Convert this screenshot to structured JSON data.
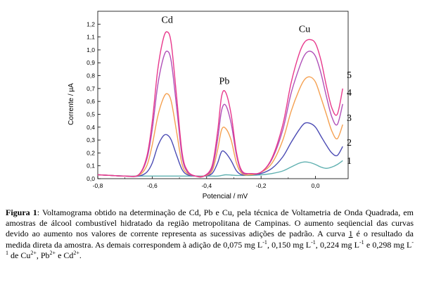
{
  "chart_data": {
    "type": "line",
    "xlabel": "Potencial / mV",
    "ylabel": "Corrente / µA",
    "xlim": [
      -0.8,
      0.12
    ],
    "ylim": [
      0.0,
      1.3
    ],
    "xticks": [
      "-0,8",
      "-0,6",
      "-0,4",
      "-0,2",
      "0,0"
    ],
    "xtick_values": [
      -0.8,
      -0.6,
      -0.4,
      -0.2,
      0.0
    ],
    "yticks": [
      "0,0",
      "0,1",
      "0,2",
      "0,3",
      "0,4",
      "0,5",
      "0,6",
      "0,7",
      "0,8",
      "0,9",
      "1,0",
      "1,1",
      "1,2"
    ],
    "ytick_values": [
      0.0,
      0.1,
      0.2,
      0.3,
      0.4,
      0.5,
      0.6,
      0.7,
      0.8,
      0.9,
      1.0,
      1.1,
      1.2
    ],
    "annotations": [
      {
        "text": "Cd",
        "x": -0.545,
        "y": 1.21
      },
      {
        "text": "Pb",
        "x": -0.335,
        "y": 0.735
      },
      {
        "text": "Cu",
        "x": -0.04,
        "y": 1.14
      }
    ],
    "x": [
      -0.8,
      -0.75,
      -0.7,
      -0.65,
      -0.62,
      -0.6,
      -0.58,
      -0.56,
      -0.545,
      -0.53,
      -0.51,
      -0.49,
      -0.47,
      -0.44,
      -0.41,
      -0.38,
      -0.36,
      -0.345,
      -0.33,
      -0.31,
      -0.29,
      -0.27,
      -0.24,
      -0.2,
      -0.16,
      -0.12,
      -0.09,
      -0.06,
      -0.04,
      -0.02,
      0.0,
      0.02,
      0.04,
      0.06,
      0.08,
      0.1
    ],
    "series": [
      {
        "name": "1",
        "color": "#5fb0b0",
        "values": [
          0.03,
          0.025,
          0.02,
          0.02,
          0.02,
          0.02,
          0.02,
          0.02,
          0.02,
          0.02,
          0.02,
          0.02,
          0.02,
          0.02,
          0.02,
          0.02,
          0.02,
          0.025,
          0.03,
          0.028,
          0.025,
          0.025,
          0.025,
          0.03,
          0.04,
          0.06,
          0.09,
          0.12,
          0.13,
          0.125,
          0.11,
          0.09,
          0.08,
          0.09,
          0.11,
          0.14
        ]
      },
      {
        "name": "2",
        "color": "#4b4bb4",
        "values": [
          0.03,
          0.025,
          0.02,
          0.02,
          0.05,
          0.12,
          0.25,
          0.33,
          0.34,
          0.3,
          0.18,
          0.07,
          0.03,
          0.02,
          0.02,
          0.04,
          0.12,
          0.21,
          0.2,
          0.14,
          0.06,
          0.03,
          0.03,
          0.04,
          0.08,
          0.17,
          0.28,
          0.38,
          0.43,
          0.43,
          0.4,
          0.33,
          0.26,
          0.2,
          0.18,
          0.25
        ]
      },
      {
        "name": "3",
        "color": "#f5a050",
        "values": [
          0.03,
          0.025,
          0.02,
          0.025,
          0.1,
          0.26,
          0.48,
          0.62,
          0.66,
          0.6,
          0.36,
          0.11,
          0.04,
          0.02,
          0.02,
          0.06,
          0.22,
          0.38,
          0.39,
          0.3,
          0.12,
          0.04,
          0.03,
          0.05,
          0.12,
          0.3,
          0.52,
          0.69,
          0.77,
          0.79,
          0.75,
          0.63,
          0.5,
          0.37,
          0.31,
          0.42
        ]
      },
      {
        "name": "4",
        "color": "#b050b8",
        "values": [
          0.03,
          0.025,
          0.02,
          0.03,
          0.15,
          0.38,
          0.72,
          0.93,
          0.99,
          0.91,
          0.55,
          0.17,
          0.05,
          0.02,
          0.02,
          0.08,
          0.3,
          0.53,
          0.57,
          0.43,
          0.18,
          0.05,
          0.04,
          0.05,
          0.15,
          0.38,
          0.66,
          0.86,
          0.96,
          0.99,
          0.95,
          0.82,
          0.64,
          0.48,
          0.42,
          0.58
        ]
      },
      {
        "name": "5",
        "color": "#e8388c",
        "values": [
          0.03,
          0.025,
          0.02,
          0.03,
          0.17,
          0.44,
          0.84,
          1.08,
          1.14,
          1.05,
          0.63,
          0.2,
          0.06,
          0.02,
          0.02,
          0.1,
          0.36,
          0.64,
          0.67,
          0.5,
          0.2,
          0.06,
          0.04,
          0.05,
          0.16,
          0.42,
          0.74,
          0.97,
          1.06,
          1.08,
          1.05,
          0.92,
          0.72,
          0.55,
          0.5,
          0.7
        ]
      }
    ]
  },
  "caption": {
    "label": "Figura 1",
    "text_1": ": Voltamograma obtido na determinação de Cd, Pb e Cu, pela técnica de Voltametria de Onda Quadrada, em amostras de álcool combustível hidratado da região metropolitana de Campinas. O aumento seqüencial das curvas devido ao aumento nos valores de corrente representa as sucessivas adições de padrão. A curva ",
    "curve_ref": "1",
    "text_2": " é o resultado da medida direta da amostra. As demais correspondem à adição de 0,075 mg L",
    "unit_sup": "-1",
    "text_3": ", 0,150 mg L",
    "text_4": ", 0,224 mg L",
    "text_5": " e 0,298 mg L",
    "text_6": " de Cu",
    "ion_sup": "2+",
    "text_7": ", Pb",
    "text_8": " e Cd",
    "text_9": "."
  }
}
